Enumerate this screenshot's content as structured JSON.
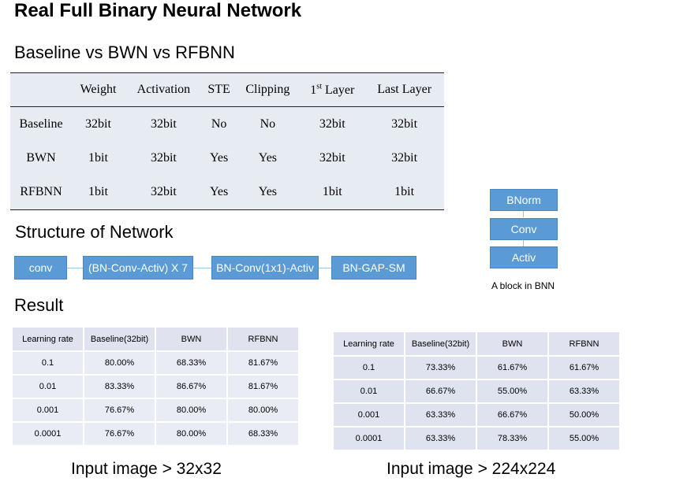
{
  "title": "Real Full Binary Neural Network",
  "comparison": {
    "heading": "Baseline vs BWN vs RFBNN",
    "columns": [
      "",
      "Weight",
      "Activation",
      "STE",
      "Clipping",
      "1st Layer",
      "Last Layer"
    ],
    "rows": [
      [
        "Baseline",
        "32bit",
        "32bit",
        "No",
        "No",
        "32bit",
        "32bit"
      ],
      [
        "BWN",
        "1bit",
        "32bit",
        "Yes",
        "Yes",
        "32bit",
        "32bit"
      ],
      [
        "RFBNN",
        "1bit",
        "32bit",
        "Yes",
        "Yes",
        "1bit",
        "1bit"
      ]
    ]
  },
  "structure": {
    "heading": "Structure of Network",
    "steps": [
      "conv",
      "(BN-Conv-Activ) X 7",
      "BN-Conv(1x1)-Activ",
      "BN-GAP-SM"
    ]
  },
  "block": {
    "items": [
      "BNorm",
      "Conv",
      "Activ"
    ],
    "caption": "A block in BNN"
  },
  "result": {
    "heading": "Result",
    "table_32": {
      "columns": [
        "Learning rate",
        "Baseline(32bit)",
        "BWN",
        "RFBNN"
      ],
      "rows": [
        [
          "0.1",
          "80.00%",
          "68.33%",
          "81.67%"
        ],
        [
          "0.01",
          "83.33%",
          "86.67%",
          "81.67%"
        ],
        [
          "0.001",
          "76.67%",
          "80.00%",
          "80.00%"
        ],
        [
          "0.0001",
          "76.67%",
          "80.00%",
          "68.33%"
        ]
      ],
      "caption": "Input image > 32x32"
    },
    "table_224": {
      "columns": [
        "Learning rate",
        "Baseline(32bit)",
        "BWN",
        "RFBNN"
      ],
      "rows": [
        [
          "0.1",
          "73.33%",
          "61.67%",
          "61.67%"
        ],
        [
          "0.01",
          "66.67%",
          "55.00%",
          "63.33%"
        ],
        [
          "0.001",
          "63.33%",
          "66.67%",
          "50.00%"
        ],
        [
          "0.0001",
          "63.33%",
          "78.33%",
          "55.00%"
        ]
      ],
      "caption": "Input image > 224x224"
    }
  }
}
